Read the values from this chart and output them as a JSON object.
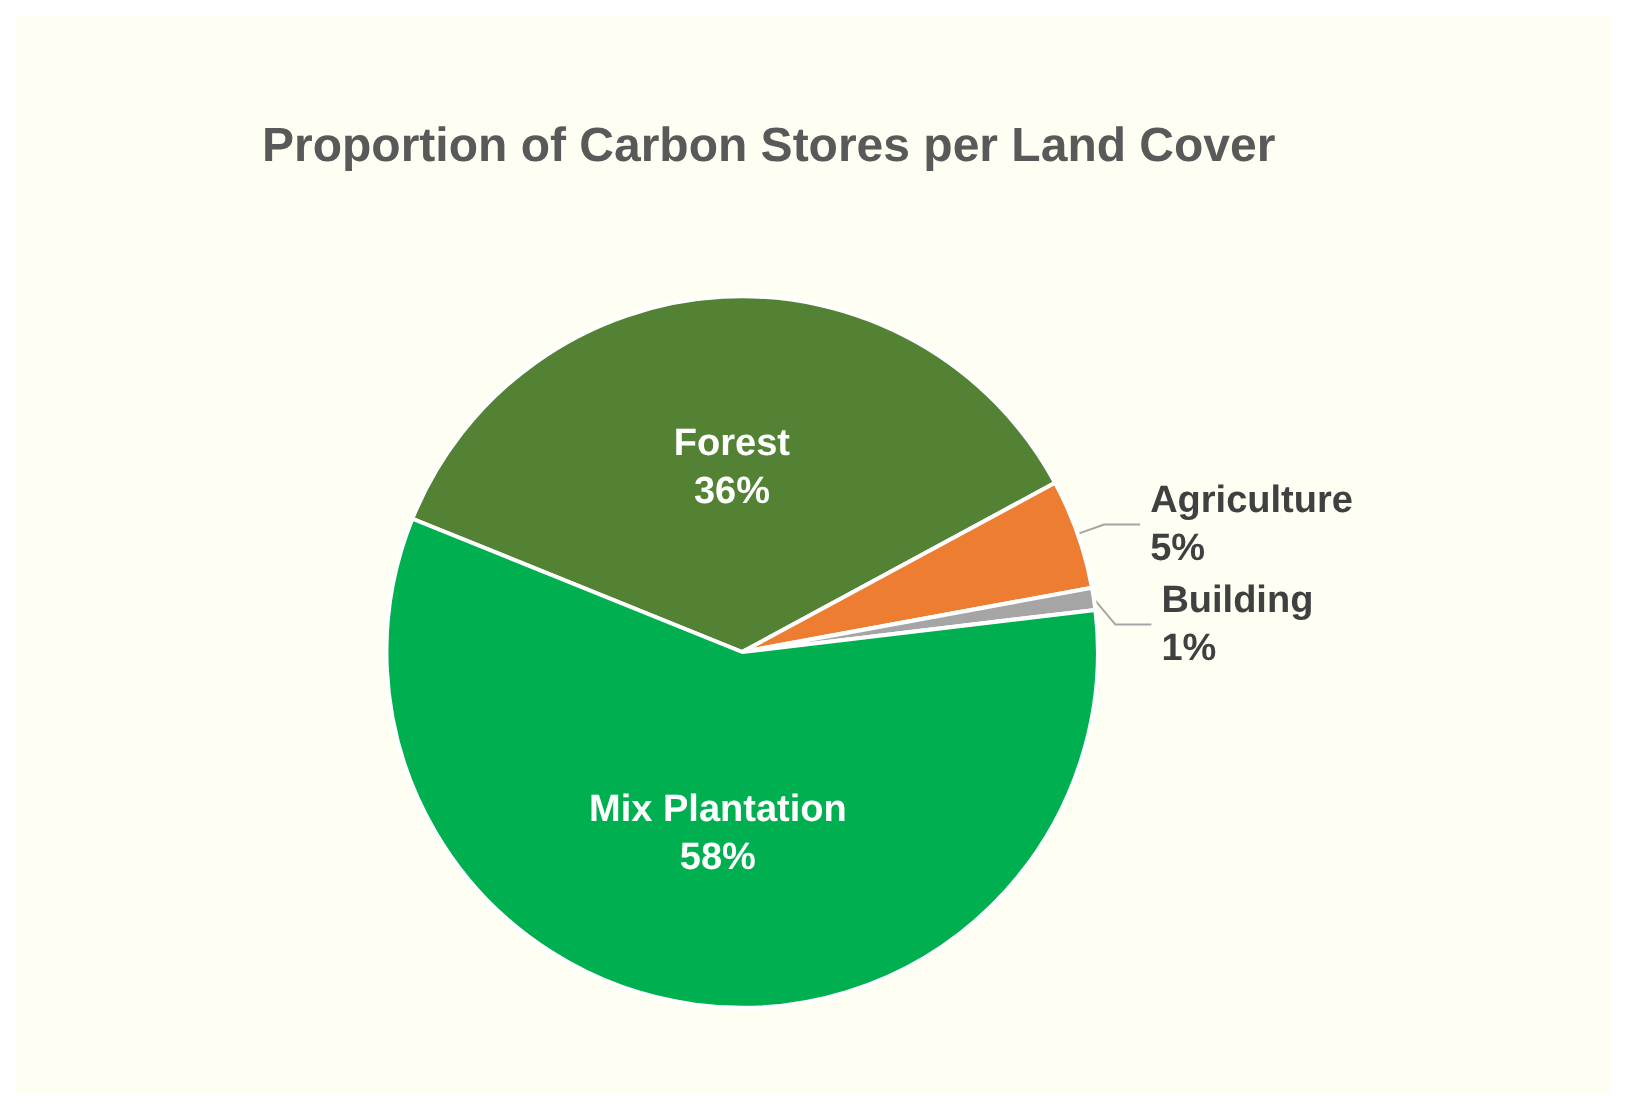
{
  "chart_data": {
    "type": "pie",
    "title": "Proportion of Carbon Stores per Land Cover",
    "categories": [
      "Forest",
      "Agriculture",
      "Building",
      "Mix Plantation"
    ],
    "values": [
      36,
      5,
      1,
      58
    ],
    "colors": [
      "#548235",
      "#ed7d31",
      "#a5a5a5",
      "#00b050"
    ],
    "value_labels": [
      "36%",
      "5%",
      "1%",
      "58%"
    ],
    "legend": false
  }
}
